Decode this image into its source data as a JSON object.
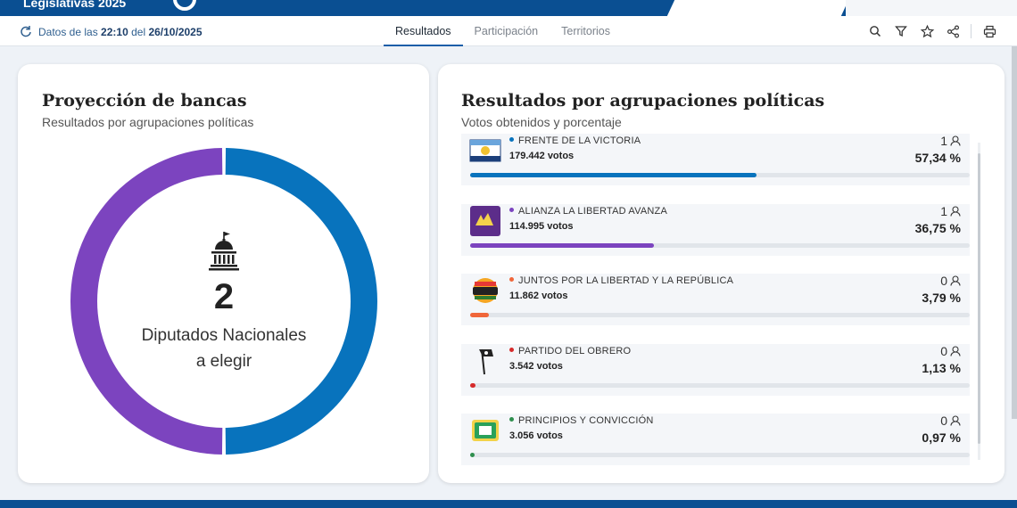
{
  "header": {
    "title": "Legislativas 2025"
  },
  "subnav": {
    "datos_prefix": "Datos de las",
    "time": "22:10",
    "del": "del",
    "date": "26/10/2025",
    "tabs": [
      {
        "label": "Resultados",
        "active": true
      },
      {
        "label": "Participación",
        "active": false
      },
      {
        "label": "Territorios",
        "active": false
      }
    ],
    "tools": [
      "search-icon",
      "filter-icon",
      "star-icon",
      "share-icon",
      "print-icon"
    ]
  },
  "left_card": {
    "title": "Proyección de bancas",
    "subtitle": "Resultados por agrupaciones políticas",
    "seats_total": "2",
    "label_line1": "Diputados Nacionales",
    "label_line2": "a elegir",
    "donut": [
      {
        "party": "FRENTE DE LA VICTORIA",
        "seats": 1,
        "color": "#0873bd"
      },
      {
        "party": "ALIANZA LA LIBERTAD AVANZA",
        "seats": 1,
        "color": "#7c44bf"
      }
    ]
  },
  "right_card": {
    "title": "Resultados por agrupaciones políticas",
    "subtitle": "Votos obtenidos y porcentaje",
    "parties": [
      {
        "name": "FRENTE DE LA VICTORIA",
        "votes": "179.442 votos",
        "seats": "1",
        "pct": "57,34 %",
        "value": 57.34,
        "color": "#0873bd"
      },
      {
        "name": "ALIANZA LA LIBERTAD AVANZA",
        "votes": "114.995 votos",
        "seats": "1",
        "pct": "36,75 %",
        "value": 36.75,
        "color": "#7c44bf"
      },
      {
        "name": "JUNTOS POR LA LIBERTAD Y LA REPÚBLICA",
        "votes": "11.862 votos",
        "seats": "0",
        "pct": "3,79 %",
        "value": 3.79,
        "color": "#f0663a"
      },
      {
        "name": "PARTIDO DEL OBRERO",
        "votes": "3.542 votos",
        "seats": "0",
        "pct": "1,13 %",
        "value": 1.13,
        "color": "#d62b2b"
      },
      {
        "name": "PRINCIPIOS Y CONVICCIÓN",
        "votes": "3.056 votos",
        "seats": "0",
        "pct": "0,97 %",
        "value": 0.97,
        "color": "#2f8f4e"
      }
    ]
  }
}
